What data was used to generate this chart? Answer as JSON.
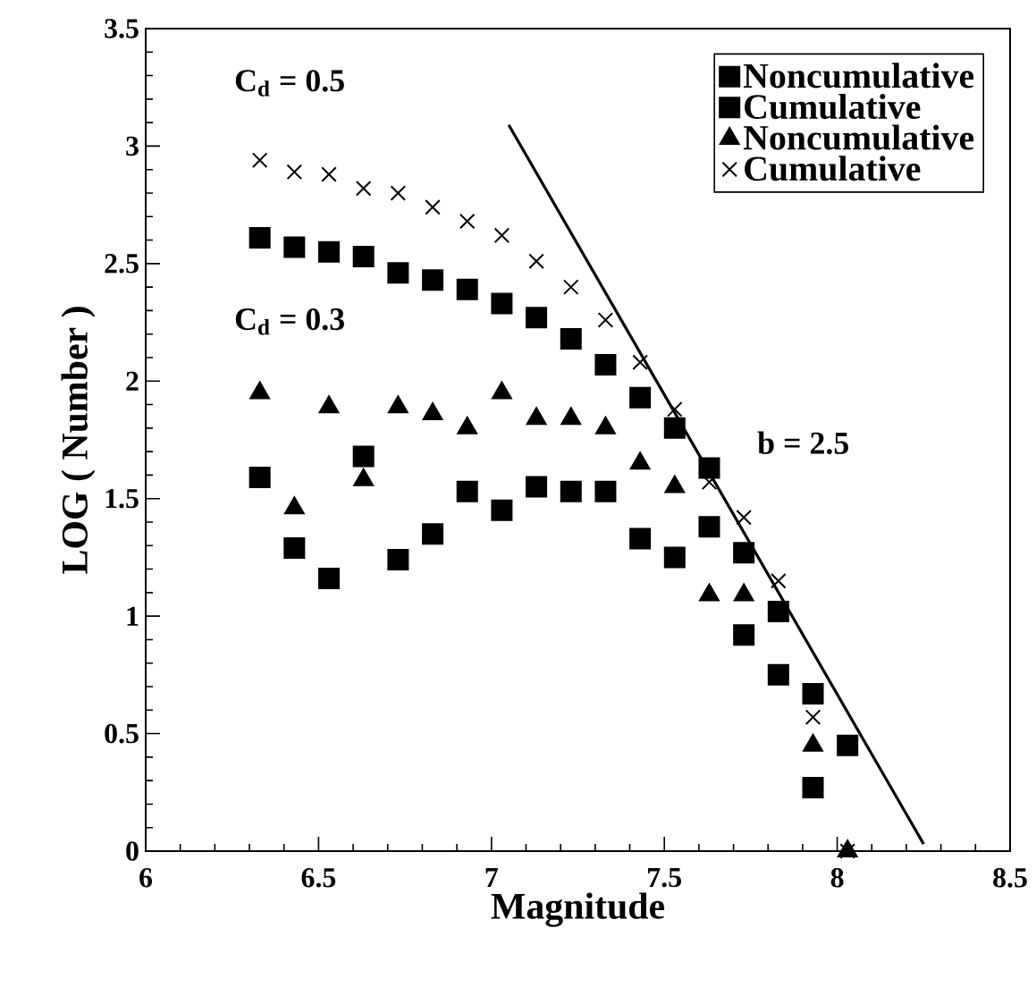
{
  "chart_data": {
    "type": "scatter",
    "xlabel": "Magnitude",
    "ylabel": "LOG ( Number )",
    "xlim": [
      6,
      8.5
    ],
    "xticks": [
      6,
      6.5,
      7,
      7.5,
      8,
      8.5
    ],
    "ylim": [
      0,
      3.5
    ],
    "yticks": [
      0,
      0.5,
      1,
      1.5,
      2,
      2.5,
      3,
      3.5
    ],
    "grid": false,
    "legend": "top right",
    "series": [
      {
        "name": "Noncumulative",
        "color": "#000000",
        "marker": "square",
        "x": [
          6.33,
          6.43,
          6.53,
          6.63,
          6.73,
          6.83,
          6.93,
          7.03,
          7.13,
          7.23,
          7.33,
          7.43,
          7.53,
          7.63,
          7.73,
          7.83,
          7.93
        ],
        "values": [
          1.59,
          1.29,
          1.16,
          1.68,
          1.24,
          1.35,
          1.53,
          1.45,
          1.55,
          1.53,
          1.53,
          1.33,
          1.25,
          1.38,
          0.92,
          0.75,
          0.27
        ]
      },
      {
        "name": "Cumulative",
        "color": "#000000",
        "marker": "square",
        "x": [
          6.33,
          6.43,
          6.53,
          6.63,
          6.73,
          6.83,
          6.93,
          7.03,
          7.13,
          7.23,
          7.33,
          7.43,
          7.53,
          7.63,
          7.73,
          7.83,
          7.93,
          8.03
        ],
        "values": [
          2.61,
          2.57,
          2.55,
          2.53,
          2.46,
          2.43,
          2.39,
          2.33,
          2.27,
          2.18,
          2.07,
          1.93,
          1.8,
          1.63,
          1.27,
          1.02,
          0.67,
          0.45
        ]
      },
      {
        "name": "Noncumulative",
        "color": "#000000",
        "marker": "triangle",
        "x": [
          6.33,
          6.43,
          6.53,
          6.63,
          6.73,
          6.83,
          6.93,
          7.03,
          7.13,
          7.23,
          7.33,
          7.43,
          7.53,
          7.63,
          7.73,
          7.83,
          7.93,
          8.03
        ],
        "values": [
          1.95,
          1.46,
          1.89,
          1.58,
          1.89,
          1.86,
          1.8,
          1.95,
          1.84,
          1.84,
          1.8,
          1.65,
          1.55,
          1.09,
          1.09,
          null,
          0.45,
          0
        ]
      },
      {
        "name": "Cumulative",
        "color": "#000000",
        "marker": "cross",
        "x": [
          6.33,
          6.43,
          6.53,
          6.63,
          6.73,
          6.83,
          6.93,
          7.03,
          7.13,
          7.23,
          7.33,
          7.43,
          7.53,
          7.63,
          7.73,
          7.83,
          7.93,
          8.03
        ],
        "values": [
          2.94,
          2.89,
          2.88,
          2.82,
          2.8,
          2.74,
          2.68,
          2.62,
          2.51,
          2.4,
          2.26,
          2.08,
          1.88,
          1.57,
          1.42,
          1.15,
          0.57,
          0
        ]
      },
      {
        "type": "line",
        "color": "#000000",
        "marker": "none",
        "x": [
          7.05,
          8.25
        ],
        "values": [
          3.09,
          0.03
        ]
      }
    ],
    "annotations": [
      "C$_{d}$ = 0.5",
      "C$_{d}$ = 0.3",
      "b =  2.5"
    ]
  }
}
